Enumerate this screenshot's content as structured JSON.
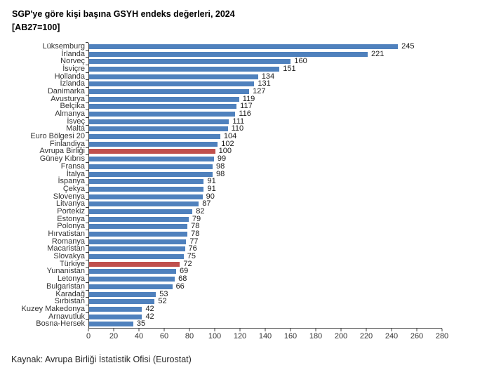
{
  "chart_data": {
    "type": "bar",
    "orientation": "horizontal",
    "title": "SGP'ye göre kişi başına GSYH endeks değerleri, 2024",
    "subtitle": "[AB27=100]",
    "source": "Kaynak: Avrupa Birliği İstatistik Ofisi (Eurostat)",
    "xlabel": "",
    "ylabel": "",
    "xlim": [
      0,
      280
    ],
    "x_ticks": [
      0,
      20,
      40,
      60,
      80,
      100,
      120,
      140,
      160,
      180,
      200,
      220,
      240,
      260,
      280
    ],
    "grid": false,
    "legend": "none",
    "bar_color": "#4f81bd",
    "highlight_color": "#c0504d",
    "highlighted": [
      "Avrupa Birliği",
      "Türkiye"
    ],
    "categories": [
      "Lüksemburg",
      "İrlanda",
      "Norveç",
      "İsviçre",
      "Hollanda",
      "İzlanda",
      "Danimarka",
      "Avusturya",
      "Belçika",
      "Almanya",
      "İsveç",
      "Malta",
      "Euro Bölgesi 20",
      "Finlandiya",
      "Avrupa Birliği",
      "Güney Kıbrıs",
      "Fransa",
      "İtalya",
      "İspanya",
      "Çekya",
      "Slovenya",
      "Litvanya",
      "Portekiz",
      "Estonya",
      "Polonya",
      "Hırvatistan",
      "Romanya",
      "Macaristan",
      "Slovakya",
      "Türkiye",
      "Yunanistan",
      "Letonya",
      "Bulgaristan",
      "Karadağ",
      "Sırbistan",
      "Kuzey Makedonya",
      "Arnavutluk",
      "Bosna-Hersek"
    ],
    "values": [
      245,
      221,
      160,
      151,
      134,
      131,
      127,
      119,
      117,
      116,
      111,
      110,
      104,
      102,
      100,
      99,
      98,
      98,
      91,
      91,
      90,
      87,
      82,
      79,
      78,
      78,
      77,
      76,
      75,
      72,
      69,
      68,
      66,
      53,
      52,
      42,
      42,
      35
    ]
  }
}
